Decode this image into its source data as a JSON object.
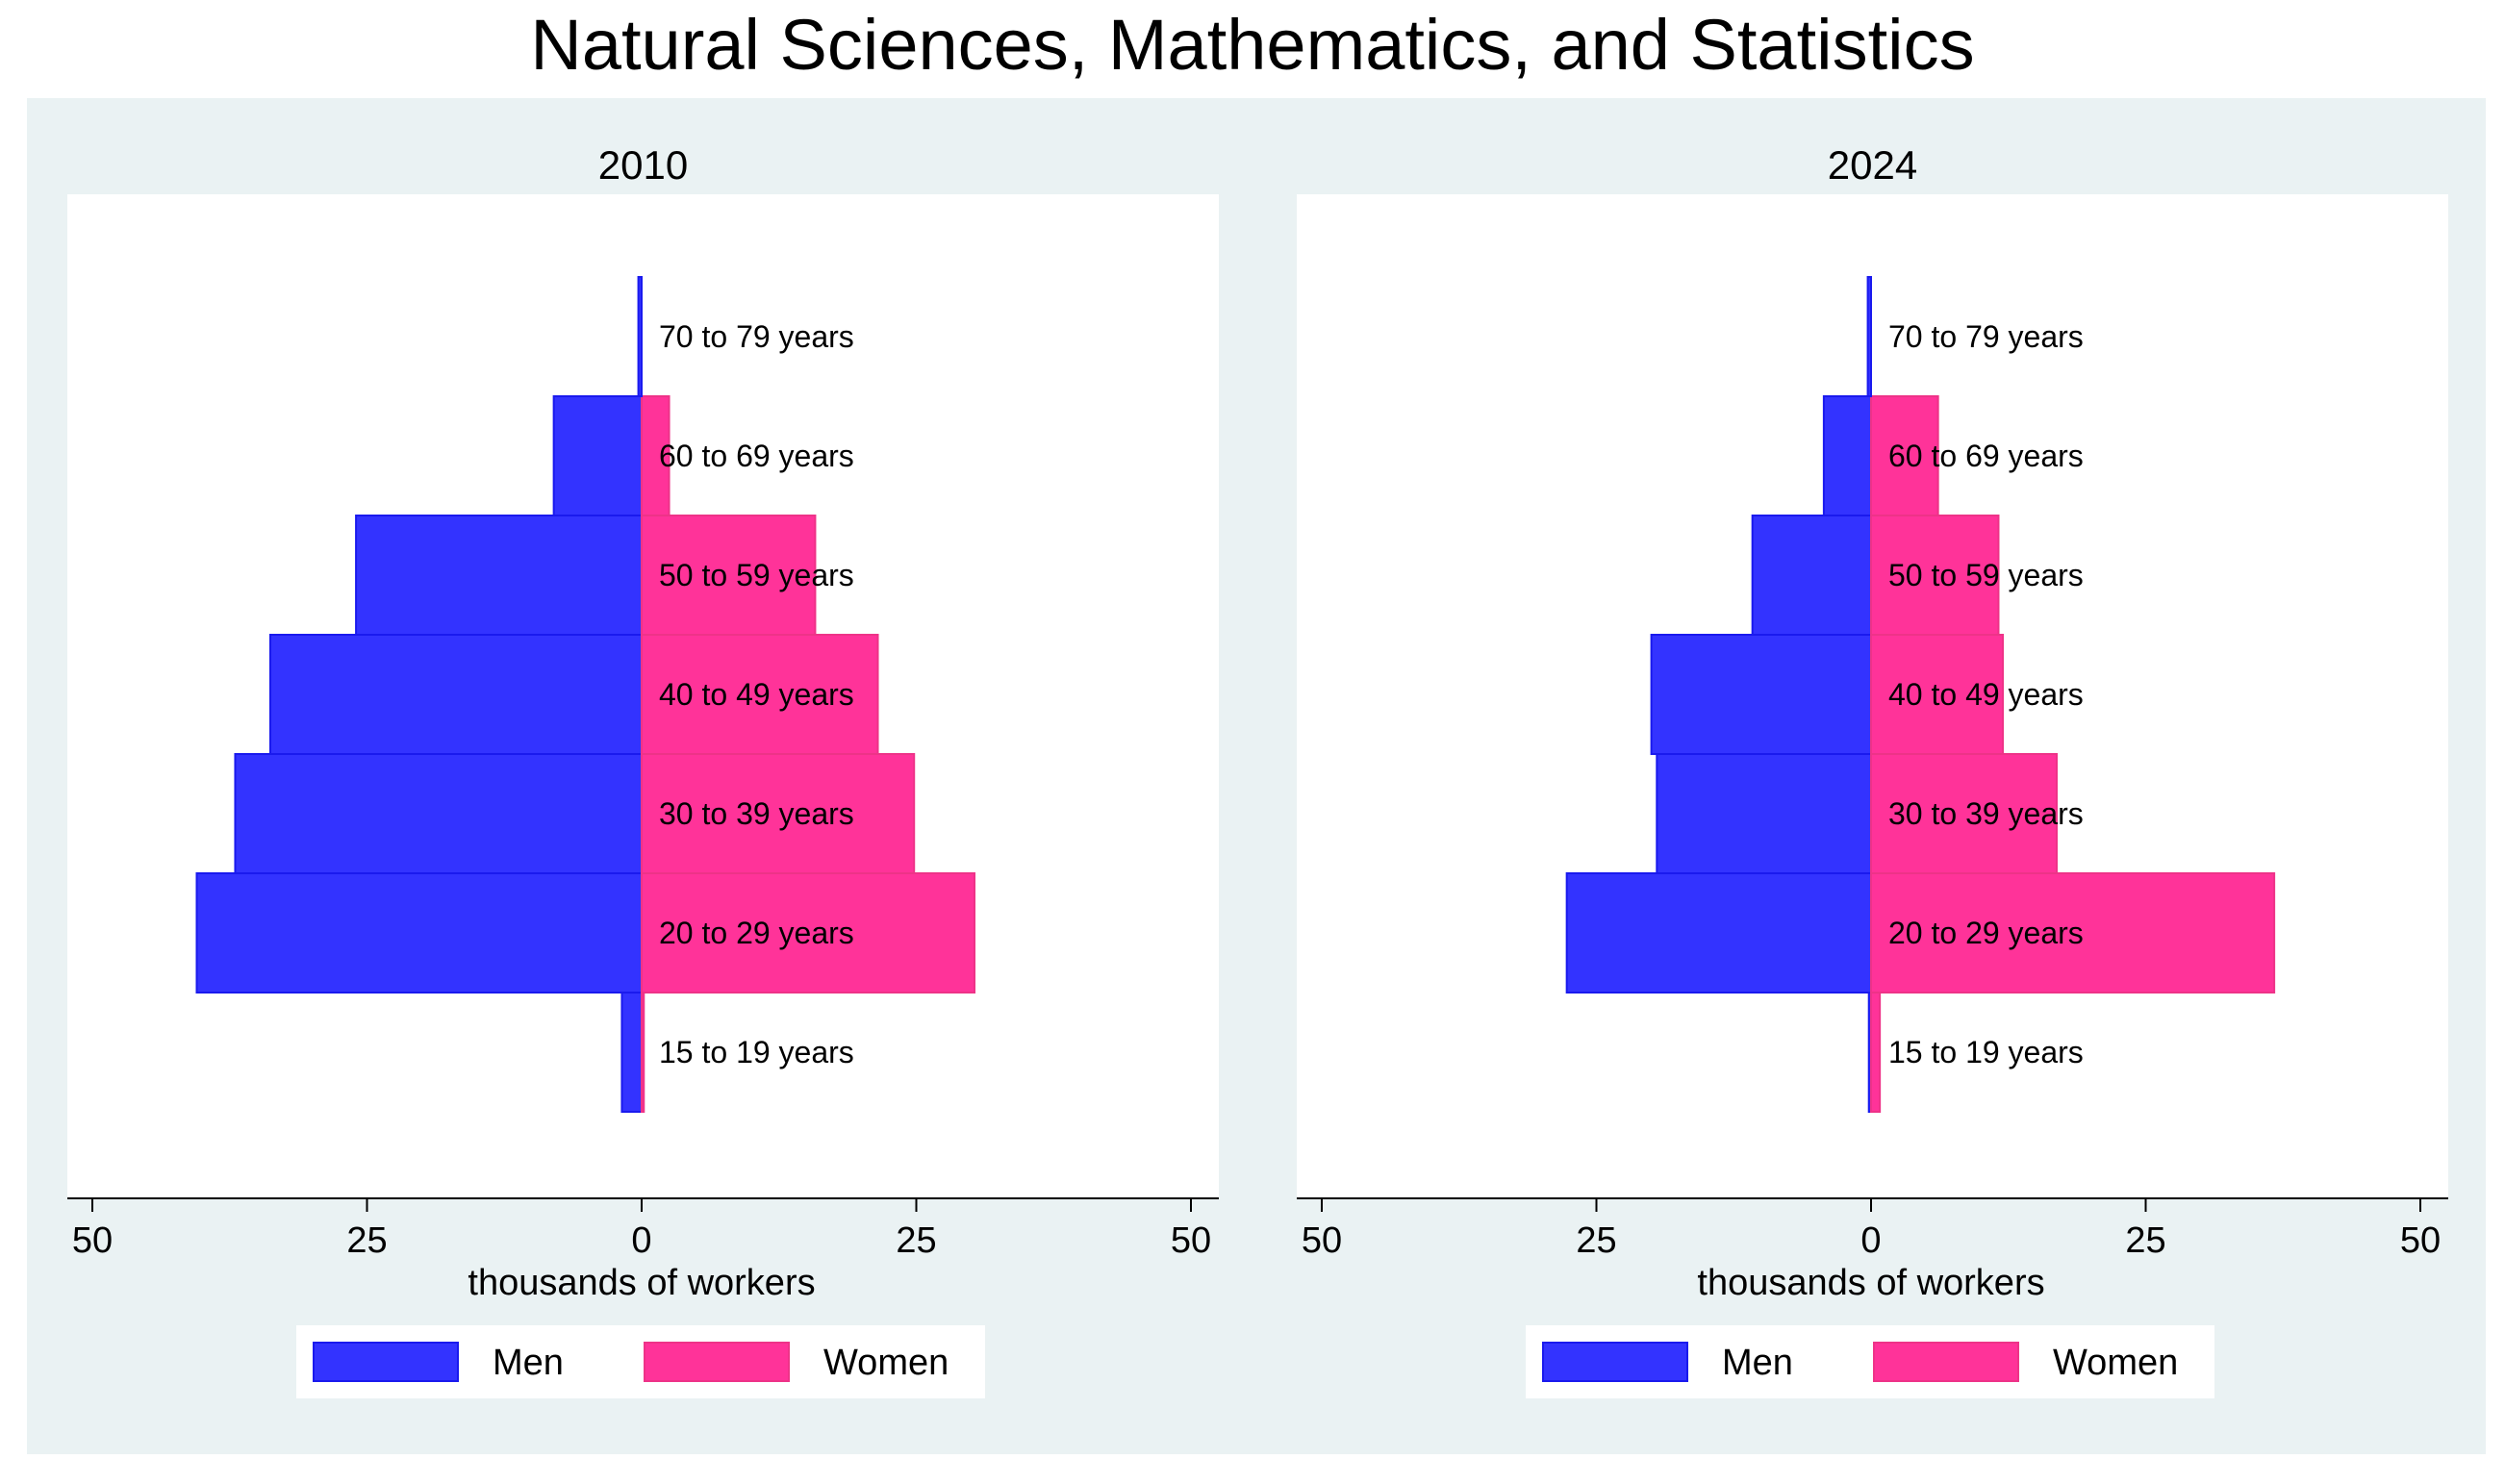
{
  "title": "Natural Sciences, Mathematics, and Statistics",
  "colors": {
    "men": "#3333ff",
    "men_edge": "#1a1aee",
    "women": "#ff3399",
    "women_edge": "#ee3388",
    "outer_bg": "#eaf2f3",
    "plot_bg": "#ffffff"
  },
  "chart_data": [
    {
      "type": "bar",
      "orientation": "horizontal",
      "subtype": "population-pyramid",
      "title": "2010",
      "xlabel": "thousands of workers",
      "ylabel": "",
      "xlim": [
        -50,
        50
      ],
      "xticks": [
        -50,
        -25,
        0,
        25,
        50
      ],
      "xtick_labels": [
        "50",
        "25",
        "0",
        "25",
        "50"
      ],
      "categories": [
        "15 to 19 years",
        "20 to 29 years",
        "30 to 39 years",
        "40 to 49 years",
        "50 to 59 years",
        "60 to 69 years",
        "70 to 79 years"
      ],
      "series": [
        {
          "name": "Men",
          "values": [
            1.8,
            40.5,
            37.0,
            33.8,
            26.0,
            8.0,
            0.3
          ]
        },
        {
          "name": "Women",
          "values": [
            0.2,
            30.3,
            24.8,
            21.5,
            15.8,
            2.5,
            0.0
          ]
        }
      ],
      "legend": {
        "position": "bottom",
        "entries": [
          "Men",
          "Women"
        ]
      }
    },
    {
      "type": "bar",
      "orientation": "horizontal",
      "subtype": "population-pyramid",
      "title": "2024",
      "xlabel": "thousands of workers",
      "ylabel": "",
      "xlim": [
        -50,
        50
      ],
      "xticks": [
        -50,
        -25,
        0,
        25,
        50
      ],
      "xtick_labels": [
        "50",
        "25",
        "0",
        "25",
        "50"
      ],
      "categories": [
        "15 to 19 years",
        "20 to 29 years",
        "30 to 39 years",
        "40 to 49 years",
        "50 to 59 years",
        "60 to 69 years",
        "70 to 79 years"
      ],
      "series": [
        {
          "name": "Men",
          "values": [
            0.2,
            27.7,
            19.5,
            20.0,
            10.8,
            4.3,
            0.3
          ]
        },
        {
          "name": "Women",
          "values": [
            0.8,
            36.7,
            16.9,
            12.0,
            11.6,
            6.1,
            0.0
          ]
        }
      ],
      "legend": {
        "position": "bottom",
        "entries": [
          "Men",
          "Women"
        ]
      }
    }
  ]
}
